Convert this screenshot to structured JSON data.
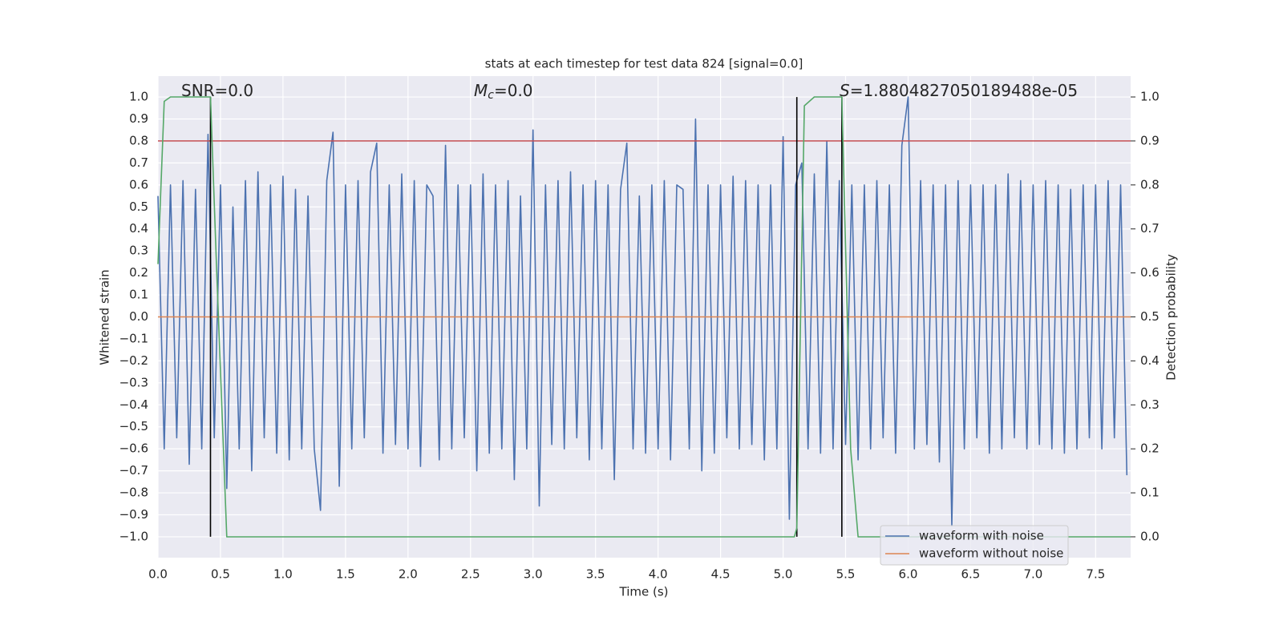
{
  "chart_data": {
    "type": "line",
    "title": "stats at each timestep for test data 824 [signal=0.0]",
    "x_label": "Time (s)",
    "y_label": "Whitened strain",
    "y2_label": "Detection probability",
    "xlim": [
      0,
      7.78
    ],
    "ylim": [
      -1.095,
      1.095
    ],
    "y2lim": [
      -0.0474,
      1.0474
    ],
    "grid": true,
    "legend": "lower right",
    "background": "#eaeaf2",
    "xticks": [
      {
        "value": 0,
        "label": "0.0"
      },
      {
        "value": 0.5,
        "label": "0.5"
      },
      {
        "value": 1,
        "label": "1.0"
      },
      {
        "value": 1.5,
        "label": "1.5"
      },
      {
        "value": 2,
        "label": "2.0"
      },
      {
        "value": 2.5,
        "label": "2.5"
      },
      {
        "value": 3,
        "label": "3.0"
      },
      {
        "value": 3.5,
        "label": "3.5"
      },
      {
        "value": 4,
        "label": "4.0"
      },
      {
        "value": 4.5,
        "label": "4.5"
      },
      {
        "value": 5,
        "label": "5.0"
      },
      {
        "value": 5.5,
        "label": "5.5"
      },
      {
        "value": 6,
        "label": "6.0"
      },
      {
        "value": 6.5,
        "label": "6.5"
      },
      {
        "value": 7,
        "label": "7.0"
      },
      {
        "value": 7.5,
        "label": "7.5"
      }
    ],
    "yticks": [
      {
        "value": -1,
        "label": "−1.0"
      },
      {
        "value": -0.9,
        "label": "−0.9"
      },
      {
        "value": -0.8,
        "label": "−0.8"
      },
      {
        "value": -0.7,
        "label": "−0.7"
      },
      {
        "value": -0.6,
        "label": "−0.6"
      },
      {
        "value": -0.5,
        "label": "−0.5"
      },
      {
        "value": -0.4,
        "label": "−0.4"
      },
      {
        "value": -0.3,
        "label": "−0.3"
      },
      {
        "value": -0.2,
        "label": "−0.2"
      },
      {
        "value": -0.1,
        "label": "−0.1"
      },
      {
        "value": 0,
        "label": "0.0"
      },
      {
        "value": 0.1,
        "label": "0.1"
      },
      {
        "value": 0.2,
        "label": "0.2"
      },
      {
        "value": 0.3,
        "label": "0.3"
      },
      {
        "value": 0.4,
        "label": "0.4"
      },
      {
        "value": 0.5,
        "label": "0.5"
      },
      {
        "value": 0.6,
        "label": "0.6"
      },
      {
        "value": 0.7,
        "label": "0.7"
      },
      {
        "value": 0.8,
        "label": "0.8"
      },
      {
        "value": 0.9,
        "label": "0.9"
      },
      {
        "value": 1,
        "label": "1.0"
      }
    ],
    "y2ticks": [
      {
        "value": 0,
        "label": "0.0"
      },
      {
        "value": 0.1,
        "label": "0.1"
      },
      {
        "value": 0.2,
        "label": "0.2"
      },
      {
        "value": 0.3,
        "label": "0.3"
      },
      {
        "value": 0.4,
        "label": "0.4"
      },
      {
        "value": 0.5,
        "label": "0.5"
      },
      {
        "value": 0.6,
        "label": "0.6"
      },
      {
        "value": 0.7,
        "label": "0.7"
      },
      {
        "value": 0.8,
        "label": "0.8"
      },
      {
        "value": 0.9,
        "label": "0.9"
      },
      {
        "value": 1,
        "label": "1.0"
      }
    ],
    "annotations": [
      {
        "parts": [
          "SNR=0.0"
        ]
      },
      {
        "parts": [
          "M",
          "c",
          "=0.0"
        ]
      },
      {
        "parts": [
          "S",
          "=1.8804827050189488e-05"
        ]
      }
    ],
    "series": [
      {
        "name": "waveform with noise",
        "color": "#4c72b0",
        "x": [
          0,
          0.05,
          0.1,
          0.15,
          0.2,
          0.25,
          0.3,
          0.35,
          0.4,
          0.45,
          0.5,
          0.55,
          0.6,
          0.65,
          0.7,
          0.75,
          0.8,
          0.85,
          0.9,
          0.95,
          1,
          1.05,
          1.1,
          1.15,
          1.2,
          1.25,
          1.3,
          1.35,
          1.4,
          1.45,
          1.5,
          1.55,
          1.6,
          1.65,
          1.7,
          1.75,
          1.8,
          1.85,
          1.9,
          1.95,
          2,
          2.05,
          2.1,
          2.15,
          2.2,
          2.25,
          2.3,
          2.35,
          2.4,
          2.45,
          2.5,
          2.55,
          2.6,
          2.65,
          2.7,
          2.75,
          2.8,
          2.85,
          2.9,
          2.95,
          3,
          3.05,
          3.1,
          3.15,
          3.2,
          3.25,
          3.3,
          3.35,
          3.4,
          3.45,
          3.5,
          3.55,
          3.6,
          3.65,
          3.7,
          3.75,
          3.8,
          3.85,
          3.9,
          3.95,
          4,
          4.05,
          4.1,
          4.15,
          4.2,
          4.25,
          4.3,
          4.35,
          4.4,
          4.45,
          4.5,
          4.55,
          4.6,
          4.65,
          4.7,
          4.75,
          4.8,
          4.85,
          4.9,
          4.95,
          5,
          5.05,
          5.1,
          5.15,
          5.2,
          5.25,
          5.3,
          5.35,
          5.4,
          5.45,
          5.5,
          5.55,
          5.6,
          5.65,
          5.7,
          5.75,
          5.8,
          5.85,
          5.9,
          5.95,
          6,
          6.05,
          6.1,
          6.15,
          6.2,
          6.25,
          6.3,
          6.35,
          6.4,
          6.45,
          6.5,
          6.55,
          6.6,
          6.65,
          6.7,
          6.75,
          6.8,
          6.85,
          6.9,
          6.95,
          7,
          7.05,
          7.1,
          7.15,
          7.2,
          7.25,
          7.3,
          7.35,
          7.4,
          7.45,
          7.5,
          7.55,
          7.6,
          7.65,
          7.7,
          7.75
        ],
        "values": [
          0.55,
          -0.6,
          0.6,
          -0.55,
          0.62,
          -0.67,
          0.58,
          -0.6,
          0.83,
          -0.55,
          0.6,
          -0.78,
          0.5,
          -0.6,
          0.62,
          -0.7,
          0.66,
          -0.55,
          0.6,
          -0.62,
          0.64,
          -0.65,
          0.58,
          -0.6,
          0.55,
          -0.6,
          -0.88,
          0.62,
          0.84,
          -0.77,
          0.6,
          -0.6,
          0.62,
          -0.55,
          0.66,
          0.79,
          -0.62,
          0.6,
          -0.58,
          0.65,
          -0.6,
          0.62,
          -0.68,
          0.6,
          0.55,
          -0.65,
          0.78,
          -0.6,
          0.6,
          -0.55,
          0.6,
          -0.7,
          0.65,
          -0.62,
          0.6,
          -0.6,
          0.62,
          -0.74,
          0.55,
          -0.6,
          0.85,
          -0.86,
          0.6,
          -0.58,
          0.62,
          -0.6,
          0.66,
          -0.55,
          0.6,
          -0.65,
          0.62,
          -0.6,
          0.6,
          -0.74,
          0.58,
          0.79,
          -0.6,
          0.55,
          -0.62,
          0.6,
          -0.6,
          0.62,
          -0.65,
          0.6,
          0.58,
          -0.6,
          0.9,
          -0.7,
          0.6,
          -0.62,
          0.6,
          -0.55,
          0.64,
          -0.6,
          0.62,
          -0.58,
          0.6,
          -0.65,
          0.6,
          -0.6,
          0.82,
          -0.92,
          0.6,
          0.7,
          -0.6,
          0.65,
          -0.62,
          0.8,
          -0.6,
          0.62,
          -0.58,
          0.6,
          -0.65,
          0.6,
          -0.6,
          0.62,
          -0.55,
          0.6,
          -0.62,
          0.78,
          1.0,
          -0.6,
          0.62,
          -0.58,
          0.6,
          -0.66,
          0.6,
          -0.95,
          0.62,
          -0.6,
          0.6,
          -0.55,
          0.6,
          -0.62,
          0.6,
          -0.6,
          0.65,
          -0.55,
          0.62,
          -0.6,
          0.6,
          -0.58,
          0.62,
          -0.6,
          0.6,
          -0.62,
          0.58,
          -0.6,
          0.6,
          -0.55,
          0.6,
          -0.6,
          0.62,
          -0.55,
          0.6,
          -0.72
        ]
      },
      {
        "name": "waveform without noise",
        "color": "#dd8452",
        "x": [
          0,
          7.78
        ],
        "values": [
          0,
          0
        ]
      }
    ],
    "probability": {
      "color": "#55a868",
      "axis": "y2",
      "x": [
        0,
        0.05,
        0.1,
        0.42,
        0.47,
        0.55,
        5.09,
        5.11,
        5.17,
        5.25,
        5.47,
        5.54,
        5.6,
        7.78
      ],
      "values": [
        0.62,
        0.99,
        1.0,
        1.0,
        0.6,
        0.0,
        0.0,
        0.02,
        0.98,
        1.0,
        1.0,
        0.2,
        0.0,
        0.0
      ]
    },
    "threshold": {
      "value": 0.9,
      "axis": "y2",
      "color": "#c44e52"
    },
    "vlines": {
      "x": [
        0.42,
        5.11,
        5.47
      ],
      "ymin": -1,
      "ymax": 1,
      "color": "#000000"
    }
  }
}
